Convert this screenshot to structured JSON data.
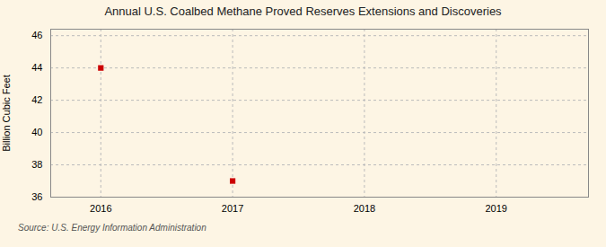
{
  "chart_data": {
    "type": "scatter",
    "title": "Annual U.S. Coalbed Methane Proved Reserves Extensions and Discoveries",
    "ylabel": "Billion Cubic Feet",
    "source": "Source: U.S. Energy Information Administration",
    "x": [
      2016,
      2017
    ],
    "values": [
      44.0,
      37.0
    ],
    "color": "#cc0000",
    "marker": "square",
    "xlim": [
      2015.62,
      2019.7
    ],
    "xticks": [
      2016,
      2017,
      2018,
      2019
    ],
    "ylim": [
      36,
      46.4
    ],
    "yticks": [
      36,
      38,
      40,
      42,
      44,
      46
    ],
    "grid": true
  }
}
